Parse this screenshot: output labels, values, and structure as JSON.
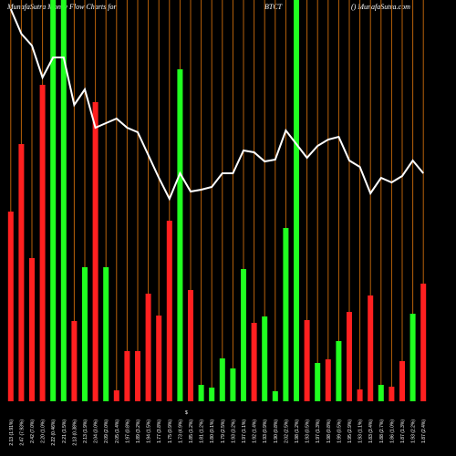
{
  "chart_data": {
    "type": "bar",
    "title": "MunafaSutra  Money Flow  Charts for",
    "symbol": "BTCT",
    "source": "() MunafaSutra.com",
    "currency": "$",
    "categories": [
      "2.13 (1.91%)",
      "2.47 (7.93%)",
      "2.42 (7.0%)",
      "2.20 (1.0%)",
      "2.22 (0.46%)",
      "2.21 (1.5%)",
      "2.13 (0.38%)",
      "2.13 (1.9%)",
      "2.04 (3.0%)",
      "2.09 (2.0%)",
      "2.05 (1.4%)",
      "1.97 (0.8%)",
      "1.89 (3.2%)",
      "1.94 (1.5%)",
      "1.77 (3.8%)",
      "1.75 (0.9%)",
      "1.73 (4.9%)",
      "1.85 (1.2%)",
      "1.81 (1.2%)",
      "1.80 (0.1%)",
      "1.79 (2.5%)",
      "1.93 (3.2%)",
      "1.97 (1.1%)",
      "1.92 (1.4%)",
      "1.93 (0.9%)",
      "1.90 (0.8%)",
      "2.02 (2.5%)",
      "1.98 (1.2%)",
      "1.93 (0.5%)",
      "1.97 (1.3%)",
      "1.98 (0.8%)",
      "1.99 (0.5%)",
      "1.95 (2.9%)",
      "1.93 (1.1%)",
      "1.83 (3.4%)",
      "1.88 (2.7%)",
      "1.86 (1.0%)",
      "1.87 (1.3%)",
      "1.93 (2.2%)",
      "1.87 (2.4%)"
    ],
    "series": [
      {
        "name": "Money flow",
        "values": [
          208,
          282,
          157,
          347,
          440,
          440,
          88,
          147,
          328,
          147,
          12,
          55,
          55,
          118,
          94,
          198,
          364,
          122,
          18,
          15,
          47,
          36,
          145,
          86,
          93,
          11,
          190,
          440,
          89,
          42,
          46,
          66,
          98,
          13,
          116,
          18,
          16,
          44,
          96,
          129
        ],
        "colors": [
          "#ff2020",
          "#ff2020",
          "#ff2020",
          "#ff2020",
          "#20ff20",
          "#20ff20",
          "#ff2020",
          "#20ff20",
          "#ff2020",
          "#20ff20",
          "#ff2020",
          "#ff2020",
          "#ff2020",
          "#ff2020",
          "#ff2020",
          "#ff2020",
          "#20ff20",
          "#ff2020",
          "#20ff20",
          "#20ff20",
          "#20ff20",
          "#20ff20",
          "#20ff20",
          "#ff2020",
          "#20ff20",
          "#20ff20",
          "#20ff20",
          "#20ff20",
          "#ff2020",
          "#20ff20",
          "#ff2020",
          "#20ff20",
          "#ff2020",
          "#ff2020",
          "#ff2020",
          "#20ff20",
          "#ff2020",
          "#ff2020",
          "#20ff20",
          "#ff2020"
        ]
      },
      {
        "name": "Price",
        "axis": "y2",
        "color": "#ffffff",
        "values": [
          430,
          403,
          390,
          355,
          377,
          377,
          325,
          342,
          300,
          305,
          310,
          300,
          295,
          270,
          245,
          222,
          250,
          230,
          232,
          235,
          250,
          250,
          275,
          273,
          263,
          265,
          297,
          282,
          267,
          280,
          287,
          290,
          264,
          257,
          228,
          245,
          240,
          247,
          264,
          250
        ]
      }
    ],
    "ylim": [
      0,
      440
    ],
    "y2lim": [
      0,
      440
    ],
    "grid_color": "#b8610a"
  }
}
